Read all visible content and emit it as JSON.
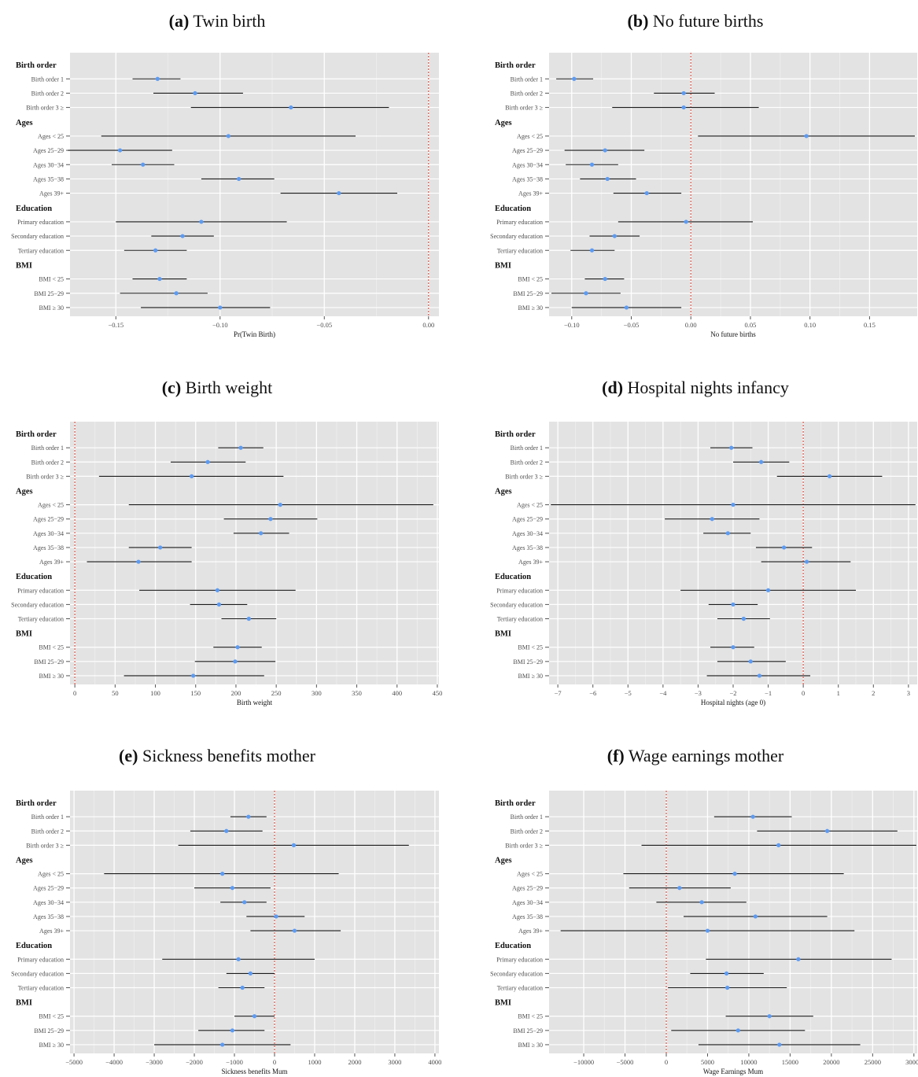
{
  "categories": [
    {
      "type": "header",
      "label": "Birth order"
    },
    {
      "type": "row",
      "label": "Birth order 1"
    },
    {
      "type": "row",
      "label": "Birth order 2"
    },
    {
      "type": "row",
      "label": "Birth order 3 ≥"
    },
    {
      "type": "header",
      "label": "Ages"
    },
    {
      "type": "row",
      "label": "Ages < 25"
    },
    {
      "type": "row",
      "label": "Ages 25−29"
    },
    {
      "type": "row",
      "label": "Ages 30−34"
    },
    {
      "type": "row",
      "label": "Ages 35−38"
    },
    {
      "type": "row",
      "label": "Ages 39+"
    },
    {
      "type": "header",
      "label": "Education"
    },
    {
      "type": "row",
      "label": "Primary education"
    },
    {
      "type": "row",
      "label": "Secondary education"
    },
    {
      "type": "row",
      "label": "Tertiary education"
    },
    {
      "type": "header",
      "label": "BMI"
    },
    {
      "type": "row",
      "label": "BMI < 25"
    },
    {
      "type": "row",
      "label": "BMI 25−29"
    },
    {
      "type": "row",
      "label": "BMI ≥ 30"
    }
  ],
  "colors": {
    "panel_bg": "#e3e3e3",
    "grid": "#ffffff",
    "point": "#5b9bf5",
    "ci_line": "#1a1a1a",
    "ref_line": "#e0584a",
    "axis_text": "#4d4d4d"
  },
  "chart_data": [
    {
      "type": "scatter",
      "letter": "(a)",
      "title": "Twin birth",
      "xlabel": "Pr(Twin Birth)",
      "xlim": [
        -0.172,
        0.005
      ],
      "xticks": [
        -0.15,
        -0.1,
        -0.05,
        0.0
      ],
      "xtick_labels": [
        "−0.15",
        "−0.10",
        "−0.05",
        "0.00"
      ],
      "reference": 0,
      "points": [
        {
          "label": "Birth order 1",
          "est": -0.13,
          "lo": -0.142,
          "hi": -0.119
        },
        {
          "label": "Birth order 2",
          "est": -0.112,
          "lo": -0.132,
          "hi": -0.089
        },
        {
          "label": "Birth order 3 ≥",
          "est": -0.066,
          "lo": -0.114,
          "hi": -0.019
        },
        {
          "label": "Ages < 25",
          "est": -0.096,
          "lo": -0.157,
          "hi": -0.035
        },
        {
          "label": "Ages 25−29",
          "est": -0.148,
          "lo": -0.173,
          "hi": -0.123
        },
        {
          "label": "Ages 30−34",
          "est": -0.137,
          "lo": -0.152,
          "hi": -0.122
        },
        {
          "label": "Ages 35−38",
          "est": -0.091,
          "lo": -0.109,
          "hi": -0.074
        },
        {
          "label": "Ages 39+",
          "est": -0.043,
          "lo": -0.071,
          "hi": -0.015
        },
        {
          "label": "Primary education",
          "est": -0.109,
          "lo": -0.15,
          "hi": -0.068
        },
        {
          "label": "Secondary education",
          "est": -0.118,
          "lo": -0.133,
          "hi": -0.103
        },
        {
          "label": "Tertiary education",
          "est": -0.131,
          "lo": -0.146,
          "hi": -0.116
        },
        {
          "label": "BMI < 25",
          "est": -0.129,
          "lo": -0.142,
          "hi": -0.116
        },
        {
          "label": "BMI 25−29",
          "est": -0.121,
          "lo": -0.148,
          "hi": -0.106
        },
        {
          "label": "BMI ≥ 30",
          "est": -0.1,
          "lo": -0.138,
          "hi": -0.076
        }
      ]
    },
    {
      "type": "scatter",
      "letter": "(b)",
      "title": "No future births",
      "xlabel": "No future births",
      "xlim": [
        -0.119,
        0.19
      ],
      "xticks": [
        -0.1,
        -0.05,
        0.0,
        0.05,
        0.1,
        0.15
      ],
      "xtick_labels": [
        "−0.10",
        "−0.05",
        "0.00",
        "0.05",
        "0.10",
        "0.15"
      ],
      "reference": 0,
      "points": [
        {
          "label": "Birth order 1",
          "est": -0.098,
          "lo": -0.113,
          "hi": -0.082
        },
        {
          "label": "Birth order 2",
          "est": -0.006,
          "lo": -0.031,
          "hi": 0.02
        },
        {
          "label": "Birth order 3 ≥",
          "est": -0.006,
          "lo": -0.066,
          "hi": 0.057
        },
        {
          "label": "Ages < 25",
          "est": 0.097,
          "lo": 0.006,
          "hi": 0.188
        },
        {
          "label": "Ages 25−29",
          "est": -0.072,
          "lo": -0.106,
          "hi": -0.039
        },
        {
          "label": "Ages 30−34",
          "est": -0.083,
          "lo": -0.105,
          "hi": -0.061
        },
        {
          "label": "Ages 35−38",
          "est": -0.07,
          "lo": -0.093,
          "hi": -0.046
        },
        {
          "label": "Ages 39+",
          "est": -0.037,
          "lo": -0.065,
          "hi": -0.008
        },
        {
          "label": "Primary education",
          "est": -0.004,
          "lo": -0.061,
          "hi": 0.052
        },
        {
          "label": "Secondary education",
          "est": -0.064,
          "lo": -0.085,
          "hi": -0.043
        },
        {
          "label": "Tertiary education",
          "est": -0.083,
          "lo": -0.101,
          "hi": -0.064
        },
        {
          "label": "BMI < 25",
          "est": -0.072,
          "lo": -0.089,
          "hi": -0.056
        },
        {
          "label": "BMI 25−29",
          "est": -0.088,
          "lo": -0.117,
          "hi": -0.059
        },
        {
          "label": "BMI ≥ 30",
          "est": -0.054,
          "lo": -0.1,
          "hi": -0.008
        }
      ]
    },
    {
      "type": "scatter",
      "letter": "(c)",
      "title": "Birth weight",
      "xlabel": "Birth weight",
      "xlim": [
        -6,
        452
      ],
      "xticks": [
        0,
        50,
        100,
        150,
        200,
        250,
        300,
        350,
        400,
        450
      ],
      "xtick_labels": [
        "0",
        "50",
        "100",
        "150",
        "200",
        "250",
        "300",
        "350",
        "400",
        "450"
      ],
      "reference": 0,
      "points": [
        {
          "label": "Birth order 1",
          "est": 206,
          "lo": 178,
          "hi": 234
        },
        {
          "label": "Birth order 2",
          "est": 165,
          "lo": 119,
          "hi": 212
        },
        {
          "label": "Birth order 3 ≥",
          "est": 145,
          "lo": 30,
          "hi": 259
        },
        {
          "label": "Ages < 25",
          "est": 255,
          "lo": 67,
          "hi": 445
        },
        {
          "label": "Ages 25−29",
          "est": 243,
          "lo": 185,
          "hi": 301
        },
        {
          "label": "Ages 30−34",
          "est": 231,
          "lo": 197,
          "hi": 266
        },
        {
          "label": "Ages 35−38",
          "est": 106,
          "lo": 67,
          "hi": 145
        },
        {
          "label": "Ages 39+",
          "est": 79,
          "lo": 15,
          "hi": 145
        },
        {
          "label": "Primary education",
          "est": 177,
          "lo": 80,
          "hi": 274
        },
        {
          "label": "Secondary education",
          "est": 179,
          "lo": 143,
          "hi": 214
        },
        {
          "label": "Tertiary education",
          "est": 216,
          "lo": 182,
          "hi": 250
        },
        {
          "label": "BMI < 25",
          "est": 202,
          "lo": 172,
          "hi": 232
        },
        {
          "label": "BMI 25−29",
          "est": 199,
          "lo": 149,
          "hi": 249
        },
        {
          "label": "BMI ≥ 30",
          "est": 147,
          "lo": 61,
          "hi": 235
        }
      ]
    },
    {
      "type": "scatter",
      "letter": "(d)",
      "title": "Hospital nights infancy",
      "xlabel": "Hospital nights (age 0)",
      "xlim": [
        -7.25,
        3.25
      ],
      "xticks": [
        -7,
        -6,
        -5,
        -4,
        -3,
        -2,
        -1,
        0,
        1,
        2,
        3
      ],
      "xtick_labels": [
        "−7",
        "−6",
        "−5",
        "−4",
        "−3",
        "−2",
        "−1",
        "0",
        "1",
        "2",
        "3"
      ],
      "reference": 0,
      "points": [
        {
          "label": "Birth order 1",
          "est": -2.05,
          "lo": -2.65,
          "hi": -1.45
        },
        {
          "label": "Birth order 2",
          "est": -1.2,
          "lo": -2.0,
          "hi": -0.4
        },
        {
          "label": "Birth order 3 ≥",
          "est": 0.75,
          "lo": -0.75,
          "hi": 2.25
        },
        {
          "label": "Ages < 25",
          "est": -2.0,
          "lo": -7.2,
          "hi": 3.2
        },
        {
          "label": "Ages 25−29",
          "est": -2.6,
          "lo": -3.95,
          "hi": -1.25
        },
        {
          "label": "Ages 30−34",
          "est": -2.15,
          "lo": -2.85,
          "hi": -1.5
        },
        {
          "label": "Ages 35−38",
          "est": -0.55,
          "lo": -1.35,
          "hi": 0.25
        },
        {
          "label": "Ages 39+",
          "est": 0.1,
          "lo": -1.2,
          "hi": 1.35
        },
        {
          "label": "Primary education",
          "est": -1.0,
          "lo": -3.5,
          "hi": 1.5
        },
        {
          "label": "Secondary education",
          "est": -2.0,
          "lo": -2.7,
          "hi": -1.3
        },
        {
          "label": "Tertiary education",
          "est": -1.7,
          "lo": -2.45,
          "hi": -0.95
        },
        {
          "label": "BMI < 25",
          "est": -2.0,
          "lo": -2.65,
          "hi": -1.4
        },
        {
          "label": "BMI 25−29",
          "est": -1.5,
          "lo": -2.45,
          "hi": -0.5
        },
        {
          "label": "BMI ≥ 30",
          "est": -1.25,
          "lo": -2.75,
          "hi": 0.2
        }
      ]
    },
    {
      "type": "scatter",
      "letter": "(e)",
      "title": "Sickness benefits mother",
      "xlabel": "Sickness benefits Mum",
      "xlim": [
        -5100,
        4100
      ],
      "xticks": [
        -5000,
        -4000,
        -3000,
        -2000,
        -1000,
        0,
        1000,
        2000,
        3000,
        4000
      ],
      "xtick_labels": [
        "−5000",
        "−4000",
        "−3000",
        "−2000",
        "−1000",
        "0",
        "1000",
        "2000",
        "3000",
        "4000"
      ],
      "reference": 0,
      "points": [
        {
          "label": "Birth order 1",
          "est": -650,
          "lo": -1100,
          "hi": -200
        },
        {
          "label": "Birth order 2",
          "est": -1200,
          "lo": -2100,
          "hi": -300
        },
        {
          "label": "Birth order 3 ≥",
          "est": 480,
          "lo": -2400,
          "hi": 3350
        },
        {
          "label": "Ages < 25",
          "est": -1300,
          "lo": -4250,
          "hi": 1600
        },
        {
          "label": "Ages 25−29",
          "est": -1050,
          "lo": -2000,
          "hi": -100
        },
        {
          "label": "Ages 30−34",
          "est": -750,
          "lo": -1350,
          "hi": -200
        },
        {
          "label": "Ages 35−38",
          "est": 40,
          "lo": -700,
          "hi": 750
        },
        {
          "label": "Ages 39+",
          "est": 500,
          "lo": -600,
          "hi": 1650
        },
        {
          "label": "Primary education",
          "est": -900,
          "lo": -2800,
          "hi": 1000
        },
        {
          "label": "Secondary education",
          "est": -600,
          "lo": -1200,
          "hi": 0
        },
        {
          "label": "Tertiary education",
          "est": -800,
          "lo": -1400,
          "hi": -250
        },
        {
          "label": "BMI < 25",
          "est": -500,
          "lo": -1000,
          "hi": 0
        },
        {
          "label": "BMI 25−29",
          "est": -1050,
          "lo": -1900,
          "hi": -250
        },
        {
          "label": "BMI ≥ 30",
          "est": -1300,
          "lo": -3000,
          "hi": 400
        }
      ]
    },
    {
      "type": "scatter",
      "letter": "(f)",
      "title": "Wage earnings mother",
      "xlabel": "Wage Earnings Mum",
      "xlim": [
        -14200,
        30400
      ],
      "xticks": [
        -10000,
        -5000,
        0,
        5000,
        10000,
        15000,
        20000,
        25000,
        30000
      ],
      "xtick_labels": [
        "−10000",
        "−5000",
        "0",
        "5000",
        "10000",
        "15000",
        "20000",
        "25000",
        "30000"
      ],
      "reference": 0,
      "points": [
        {
          "label": "Birth order 1",
          "est": 10500,
          "lo": 5800,
          "hi": 15200
        },
        {
          "label": "Birth order 2",
          "est": 19500,
          "lo": 11000,
          "hi": 28000
        },
        {
          "label": "Birth order 3 ≥",
          "est": 13600,
          "lo": -3000,
          "hi": 30300
        },
        {
          "label": "Ages < 25",
          "est": 8300,
          "lo": -5200,
          "hi": 21500
        },
        {
          "label": "Ages 25−29",
          "est": 1600,
          "lo": -4500,
          "hi": 7800
        },
        {
          "label": "Ages 30−34",
          "est": 4300,
          "lo": -1200,
          "hi": 9700
        },
        {
          "label": "Ages 35−38",
          "est": 10800,
          "lo": 2100,
          "hi": 19500
        },
        {
          "label": "Ages 39+",
          "est": 5000,
          "lo": -12800,
          "hi": 22800
        },
        {
          "label": "Primary education",
          "est": 16000,
          "lo": 4800,
          "hi": 27300
        },
        {
          "label": "Secondary education",
          "est": 7300,
          "lo": 2900,
          "hi": 11800
        },
        {
          "label": "Tertiary education",
          "est": 7400,
          "lo": 200,
          "hi": 14600
        },
        {
          "label": "BMI < 25",
          "est": 12500,
          "lo": 7200,
          "hi": 17800
        },
        {
          "label": "BMI 25−29",
          "est": 8700,
          "lo": 600,
          "hi": 16800
        },
        {
          "label": "BMI ≥ 30",
          "est": 13700,
          "lo": 3900,
          "hi": 23500
        }
      ]
    }
  ]
}
